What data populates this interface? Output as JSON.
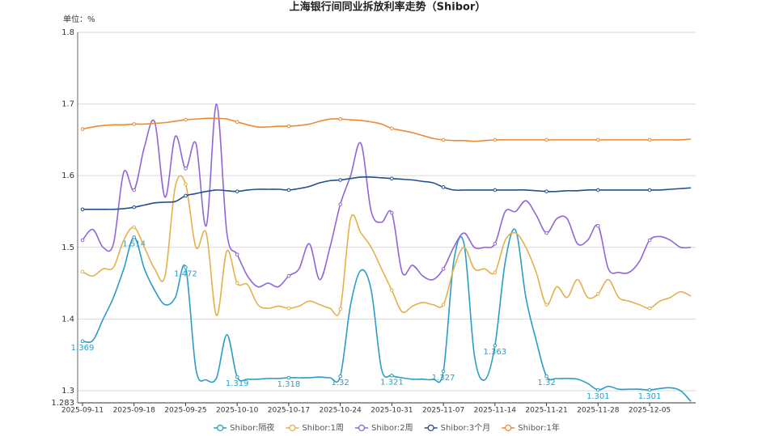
{
  "chart_data": {
    "type": "line",
    "title": "上海银行间同业拆放利率走势（Shibor）",
    "y_axis_label": "单位：%",
    "categories": [
      "2025-09-11",
      null,
      null,
      null,
      null,
      "2025-09-18",
      null,
      null,
      null,
      null,
      "2025-09-25",
      null,
      null,
      null,
      null,
      "2025-10-10",
      null,
      null,
      null,
      null,
      "2025-10-17",
      null,
      null,
      null,
      null,
      "2025-10-24",
      null,
      null,
      null,
      null,
      "2025-10-31",
      null,
      null,
      null,
      null,
      "2025-11-07",
      null,
      null,
      null,
      null,
      "2025-11-14",
      null,
      null,
      null,
      null,
      "2025-11-21",
      null,
      null,
      null,
      null,
      "2025-11-28",
      null,
      null,
      null,
      null,
      "2025-12-05",
      null,
      null,
      null,
      null
    ],
    "ylim": [
      1.283,
      1.8
    ],
    "yticks": [
      1.283,
      1.3,
      1.4,
      1.5,
      1.6,
      1.7,
      1.8
    ],
    "grid": true,
    "smooth": true,
    "symbol_interval": 5,
    "legend_position": "bottom",
    "series": [
      {
        "name": "Shibor:隔夜",
        "color": "#2a9dc7",
        "show_labels": true,
        "values": [
          1.369,
          1.37,
          1.4,
          1.43,
          1.47,
          1.514,
          1.47,
          1.44,
          1.42,
          1.43,
          1.472,
          1.33,
          1.315,
          1.318,
          1.378,
          1.319,
          1.316,
          1.316,
          1.317,
          1.317,
          1.318,
          1.318,
          1.318,
          1.319,
          1.318,
          1.32,
          1.42,
          1.468,
          1.44,
          1.33,
          1.321,
          1.318,
          1.316,
          1.316,
          1.316,
          1.327,
          1.48,
          1.505,
          1.35,
          1.315,
          1.363,
          1.48,
          1.524,
          1.43,
          1.37,
          1.32,
          1.317,
          1.317,
          1.316,
          1.31,
          1.301,
          1.306,
          1.302,
          1.302,
          1.302,
          1.301,
          1.303,
          1.304,
          1.3,
          1.285
        ]
      },
      {
        "name": "Shibor:1周",
        "color": "#e3b04b",
        "values": [
          1.466,
          1.46,
          1.47,
          1.472,
          1.51,
          1.528,
          1.5,
          1.47,
          1.46,
          1.585,
          1.588,
          1.5,
          1.52,
          1.405,
          1.495,
          1.45,
          1.448,
          1.42,
          1.415,
          1.418,
          1.415,
          1.418,
          1.425,
          1.42,
          1.415,
          1.414,
          1.54,
          1.52,
          1.5,
          1.47,
          1.44,
          1.41,
          1.418,
          1.423,
          1.42,
          1.42,
          1.47,
          1.5,
          1.47,
          1.47,
          1.465,
          1.51,
          1.52,
          1.5,
          1.465,
          1.42,
          1.445,
          1.43,
          1.455,
          1.43,
          1.435,
          1.455,
          1.43,
          1.425,
          1.42,
          1.415,
          1.425,
          1.43,
          1.438,
          1.432
        ]
      },
      {
        "name": "Shibor:2周",
        "color": "#8f66d8",
        "values": [
          1.51,
          1.525,
          1.5,
          1.505,
          1.605,
          1.58,
          1.64,
          1.675,
          1.57,
          1.655,
          1.61,
          1.645,
          1.53,
          1.7,
          1.52,
          1.49,
          1.46,
          1.445,
          1.45,
          1.445,
          1.46,
          1.47,
          1.505,
          1.455,
          1.5,
          1.56,
          1.6,
          1.645,
          1.55,
          1.535,
          1.548,
          1.465,
          1.475,
          1.46,
          1.455,
          1.47,
          1.5,
          1.52,
          1.5,
          1.5,
          1.505,
          1.55,
          1.55,
          1.565,
          1.545,
          1.52,
          1.54,
          1.54,
          1.505,
          1.51,
          1.53,
          1.47,
          1.465,
          1.465,
          1.48,
          1.51,
          1.515,
          1.51,
          1.5,
          1.5
        ]
      },
      {
        "name": "Shibor:3个月",
        "color": "#21508c",
        "values": [
          1.553,
          1.553,
          1.553,
          1.553,
          1.554,
          1.556,
          1.559,
          1.562,
          1.563,
          1.564,
          1.572,
          1.575,
          1.578,
          1.58,
          1.579,
          1.578,
          1.58,
          1.581,
          1.581,
          1.581,
          1.58,
          1.582,
          1.585,
          1.59,
          1.593,
          1.594,
          1.596,
          1.598,
          1.598,
          1.597,
          1.596,
          1.595,
          1.594,
          1.592,
          1.59,
          1.584,
          1.58,
          1.58,
          1.58,
          1.58,
          1.58,
          1.58,
          1.58,
          1.58,
          1.579,
          1.578,
          1.578,
          1.579,
          1.579,
          1.58,
          1.58,
          1.58,
          1.58,
          1.58,
          1.58,
          1.58,
          1.58,
          1.581,
          1.582,
          1.583
        ]
      },
      {
        "name": "Shibor:1年",
        "color": "#ef8a34",
        "values": [
          1.665,
          1.668,
          1.67,
          1.671,
          1.671,
          1.672,
          1.672,
          1.673,
          1.674,
          1.676,
          1.678,
          1.679,
          1.68,
          1.68,
          1.679,
          1.675,
          1.671,
          1.668,
          1.668,
          1.669,
          1.669,
          1.67,
          1.672,
          1.676,
          1.679,
          1.679,
          1.678,
          1.677,
          1.675,
          1.672,
          1.666,
          1.663,
          1.66,
          1.656,
          1.652,
          1.65,
          1.649,
          1.649,
          1.648,
          1.649,
          1.65,
          1.65,
          1.65,
          1.65,
          1.65,
          1.65,
          1.65,
          1.65,
          1.65,
          1.65,
          1.65,
          1.65,
          1.65,
          1.65,
          1.65,
          1.65,
          1.65,
          1.65,
          1.65,
          1.651
        ]
      }
    ]
  }
}
